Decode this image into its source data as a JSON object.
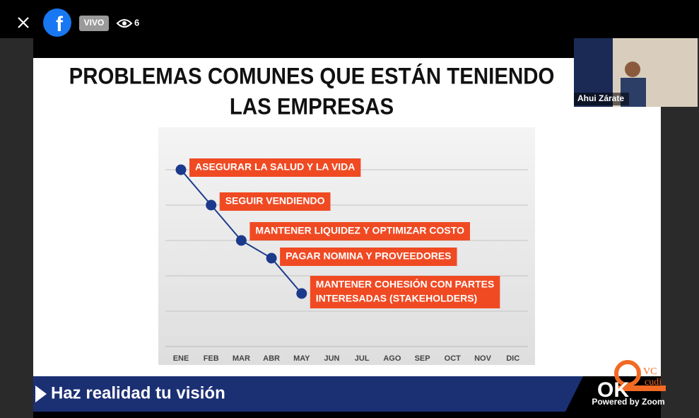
{
  "header": {
    "live": "VIVO",
    "viewers": 6
  },
  "slide": {
    "title_lines": [
      "PROBLEMAS COMUNES QUE ESTÁN TENIENDO",
      "LAS  EMPRESAS"
    ],
    "banner": "Haz realidad tu visión",
    "logo": [
      "VC",
      "cudi"
    ]
  },
  "chart_data": {
    "type": "line",
    "categories": [
      "ENE",
      "FEB",
      "MAR",
      "ABR",
      "MAY",
      "JUN",
      "JUL",
      "AGO",
      "SEP",
      "OCT",
      "NOV",
      "DIC"
    ],
    "values": [
      5,
      4,
      3,
      2.5,
      1.5,
      null,
      null,
      null,
      null,
      null,
      null,
      null
    ],
    "color": "#1c3a8c",
    "annotations": [
      [
        "ASEGURAR LA SALUD Y LA VIDA"
      ],
      [
        "SEGUIR VENDIENDO"
      ],
      [
        "MANTENER LIQUIDEZ Y OPTIMIZAR COSTO"
      ],
      [
        "PAGAR NOMINA Y PROVEEDORES"
      ],
      [
        "MANTENER COHESIÓN CON PARTES",
        "INTERESADAS (STAKEHOLDERS)"
      ]
    ],
    "annotation_color": "#f04a23",
    "ylim": [
      0,
      6
    ],
    "yticks": [
      1,
      2,
      3,
      4,
      5
    ],
    "grid": true
  },
  "participant": {
    "name": "Ahui Zárate"
  },
  "footer": "Powered by Zoom"
}
